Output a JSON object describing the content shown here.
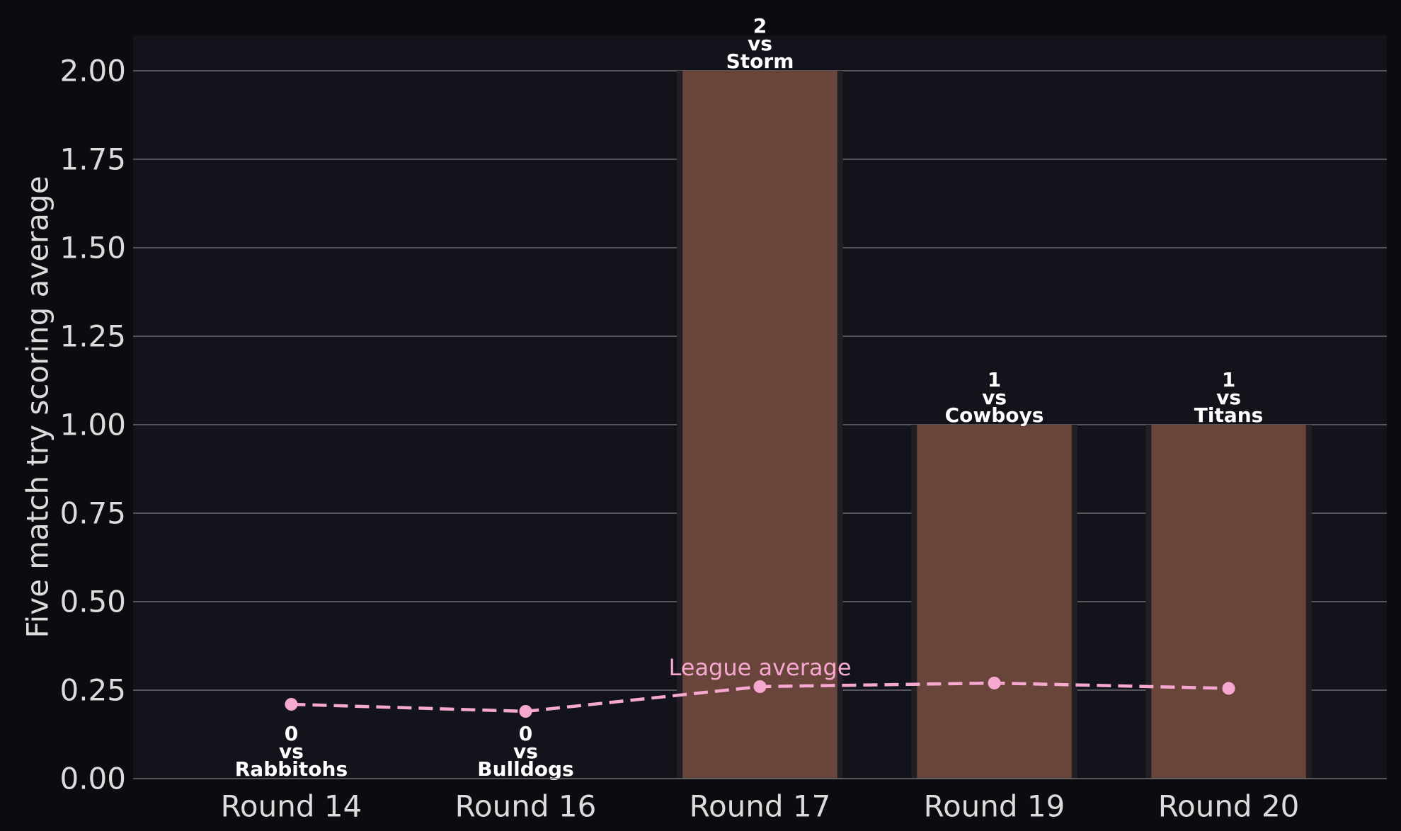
{
  "chart_data": {
    "type": "bar",
    "categories": [
      "Round 14",
      "Round 16",
      "Round 17",
      "Round 19",
      "Round 20"
    ],
    "values": [
      0,
      0,
      2,
      1,
      1
    ],
    "bar_labels": [
      [
        "0",
        "vs",
        "Rabbitohs"
      ],
      [
        "0",
        "vs",
        "Bulldogs"
      ],
      [
        "2",
        "vs",
        "Storm"
      ],
      [
        "1",
        "vs",
        "Cowboys"
      ],
      [
        "1",
        "vs",
        "Titans"
      ]
    ],
    "reference_series": {
      "values": [
        0.21,
        0.19,
        0.26,
        0.27,
        0.255
      ],
      "annotation": "League average",
      "style": "dashed",
      "color": "#f7a8d0"
    },
    "ylabel": "Five match try scoring average",
    "xlabel": "",
    "ylim": [
      0,
      2.1
    ],
    "yticks": [
      "0.00",
      "0.25",
      "0.50",
      "0.75",
      "1.00",
      "1.25",
      "1.50",
      "1.75",
      "2.00"
    ],
    "grid": "horizontal",
    "colors": {
      "figure_bg": "#0c0c10",
      "plot_bg": "#12131b",
      "bar": "#68443a",
      "bar_shadow": "#221f24",
      "grid": "#6b6b70",
      "text": "#dcdcdc"
    }
  }
}
